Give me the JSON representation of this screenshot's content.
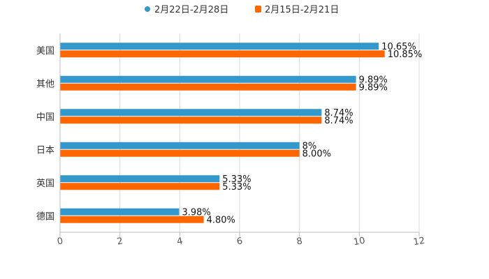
{
  "chart_data": {
    "type": "bar",
    "orientation": "horizontal",
    "title": "",
    "xlabel": "",
    "ylabel": "",
    "xlim": [
      0,
      12
    ],
    "x_ticks": [
      "0",
      "2",
      "4",
      "6",
      "8",
      "10",
      "12"
    ],
    "grid": true,
    "legend_position": "top-center",
    "categories": [
      "美国",
      "其他",
      "中国",
      "日本",
      "英国",
      "德国"
    ],
    "series": [
      {
        "name": "2月22日-2月28日",
        "color": "#3399cc",
        "values": [
          10.65,
          9.89,
          8.74,
          8,
          5.33,
          3.98
        ],
        "labels": [
          "10.65%",
          "9.89%",
          "8.74%",
          "8%",
          "5.33%",
          "3.98%"
        ]
      },
      {
        "name": "2月15日-2月21日",
        "color": "#ff6600",
        "values": [
          10.85,
          9.89,
          8.74,
          8.0,
          5.33,
          4.8
        ],
        "labels": [
          "10.85%",
          "9.89%",
          "8.74%",
          "8.00%",
          "5.33%",
          "4.80%"
        ]
      }
    ]
  }
}
